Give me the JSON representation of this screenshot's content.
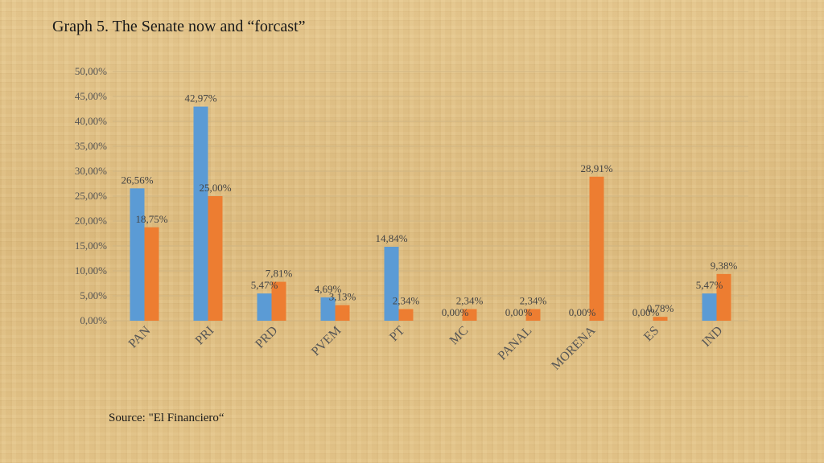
{
  "page": {
    "title": "Graph 5. The Senate now and “forcast”",
    "source": "Source:  \"El Financiero“"
  },
  "chart_data": {
    "type": "bar",
    "categories": [
      "PAN",
      "PRI",
      "PRD",
      "PVEM",
      "PT",
      "MC",
      "PANAL",
      "MORENA",
      "ES",
      "IND"
    ],
    "series": [
      {
        "values": [
          26.56,
          42.97,
          5.47,
          4.69,
          14.84,
          0.0,
          0.0,
          0.0,
          0.0,
          5.47
        ],
        "labels": [
          "26,56%",
          "42,97%",
          "5,47%",
          "4,69%",
          "14,84%",
          "0,00%",
          "0,00%",
          "0,00%",
          "0,00%",
          "5,47%"
        ],
        "color": "#5b9bd5"
      },
      {
        "values": [
          18.75,
          25.0,
          7.81,
          3.13,
          2.34,
          2.34,
          2.34,
          28.91,
          0.78,
          9.38
        ],
        "labels": [
          "18,75%",
          "25,00%",
          "7,81%",
          "3,13%",
          "2,34%",
          "2,34%",
          "2,34%",
          "28,91%",
          "0,78%",
          "9,38%"
        ],
        "color": "#ed7d31"
      }
    ],
    "yticks": [
      "0,00%",
      "5,00%",
      "10,00%",
      "15,00%",
      "20,00%",
      "25,00%",
      "30,00%",
      "35,00%",
      "40,00%",
      "45,00%",
      "50,00%"
    ],
    "ylim": [
      0,
      50
    ],
    "grid": true,
    "legend": "none"
  }
}
